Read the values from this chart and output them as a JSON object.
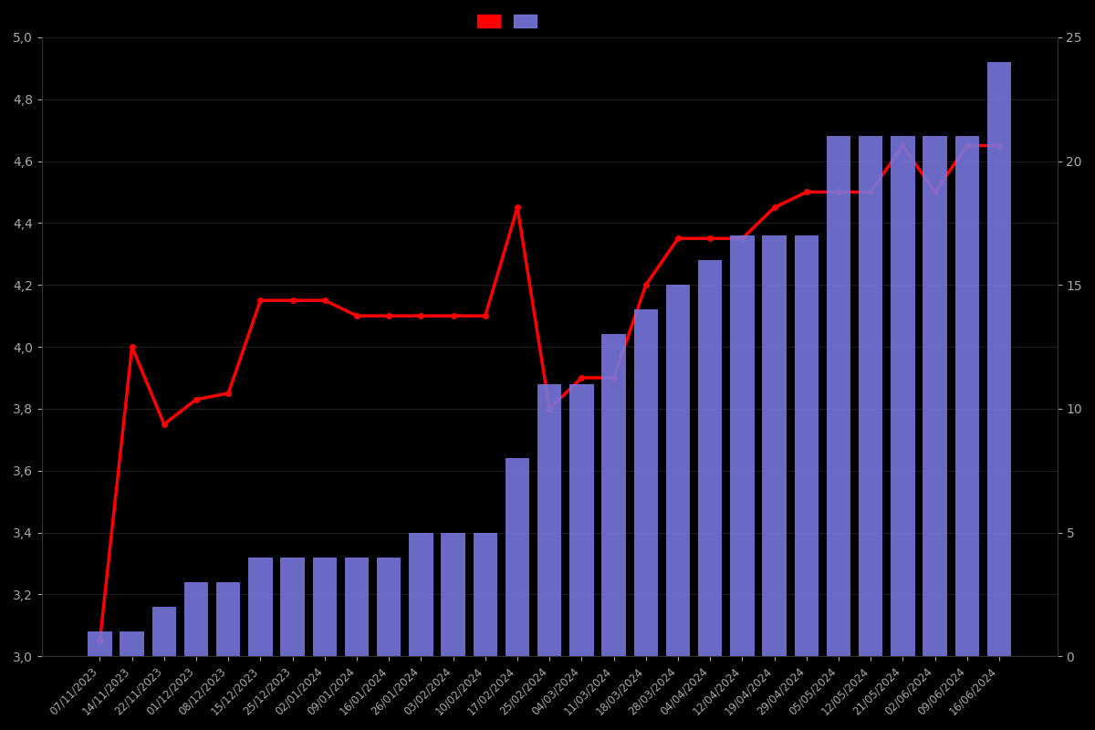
{
  "dates": [
    "07/11/2023",
    "14/11/2023",
    "22/11/2023",
    "01/12/2023",
    "08/12/2023",
    "15/12/2023",
    "25/12/2023",
    "02/01/2024",
    "09/01/2024",
    "16/01/2024",
    "26/01/2024",
    "03/02/2024",
    "10/02/2024",
    "17/02/2024",
    "25/02/2024",
    "04/03/2024",
    "11/03/2024",
    "18/03/2024",
    "28/03/2024",
    "04/04/2024",
    "12/04/2024",
    "19/04/2024",
    "29/04/2024",
    "05/05/2024",
    "12/05/2024",
    "21/05/2024",
    "02/06/2024",
    "09/06/2024",
    "16/06/2024"
  ],
  "bar_values": [
    1,
    1,
    2,
    3,
    3,
    4,
    4,
    4,
    4,
    4,
    5,
    5,
    5,
    8,
    11,
    11,
    13,
    14,
    15,
    16,
    17,
    17,
    17,
    21,
    21,
    21,
    21,
    21,
    24
  ],
  "line_values": [
    3.05,
    4.0,
    3.75,
    3.83,
    3.85,
    4.15,
    4.15,
    4.15,
    4.1,
    4.1,
    4.1,
    4.1,
    4.1,
    4.45,
    3.8,
    3.9,
    3.9,
    4.2,
    4.35,
    4.35,
    4.35,
    4.45,
    4.5,
    4.5,
    4.5,
    4.65,
    4.5,
    4.65,
    4.65
  ],
  "bar_color": "#7777dd",
  "line_color": "#ff0000",
  "background_color": "#000000",
  "text_color": "#aaaaaa",
  "left_ylim": [
    3.0,
    5.0
  ],
  "right_ylim": [
    0,
    25
  ],
  "left_yticks": [
    3.0,
    3.2,
    3.4,
    3.6,
    3.8,
    4.0,
    4.2,
    4.4,
    4.6,
    4.8,
    5.0
  ],
  "right_yticks": [
    0,
    5,
    10,
    15,
    20,
    25
  ],
  "grid_color": "#2a2a2a",
  "spine_color": "#333333",
  "figsize": [
    12.0,
    8.0
  ],
  "dpi": 100
}
